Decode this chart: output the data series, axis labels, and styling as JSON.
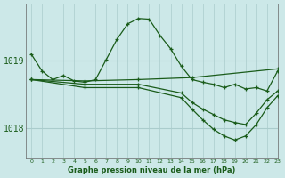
{
  "title": "Graphe pression niveau de la mer (hPa)",
  "bg_color": "#cce8e8",
  "grid_color": "#aacccc",
  "line_color": "#1a5c1a",
  "yticks": [
    1018,
    1019
  ],
  "ylim": [
    1017.55,
    1019.85
  ],
  "xlim": [
    -0.5,
    23
  ],
  "xticks": [
    0,
    1,
    2,
    3,
    4,
    5,
    6,
    7,
    8,
    9,
    10,
    11,
    12,
    13,
    14,
    15,
    16,
    17,
    18,
    19,
    20,
    21,
    22,
    23
  ],
  "series": [
    {
      "x": [
        0,
        1,
        2,
        3,
        4,
        5,
        6,
        7,
        8,
        9,
        10,
        11,
        12,
        13,
        14,
        15,
        16,
        17,
        18,
        19,
        20,
        21,
        22,
        23
      ],
      "y": [
        1019.1,
        1018.85,
        1018.72,
        1018.78,
        1018.7,
        1018.68,
        1018.72,
        1019.02,
        1019.32,
        1019.55,
        1019.63,
        1019.62,
        1019.38,
        1019.18,
        1018.92,
        1018.72,
        1018.68,
        1018.65,
        1018.6,
        1018.65,
        1018.58,
        1018.6,
        1018.55,
        1018.85
      ]
    },
    {
      "x": [
        0,
        5,
        10,
        15,
        23
      ],
      "y": [
        1018.72,
        1018.7,
        1018.72,
        1018.75,
        1018.88
      ]
    },
    {
      "x": [
        0,
        5,
        10,
        14,
        15,
        16,
        17,
        18,
        19,
        20,
        21,
        22,
        23
      ],
      "y": [
        1018.72,
        1018.65,
        1018.65,
        1018.52,
        1018.38,
        1018.28,
        1018.2,
        1018.12,
        1018.08,
        1018.05,
        1018.22,
        1018.42,
        1018.55
      ]
    },
    {
      "x": [
        0,
        5,
        10,
        14,
        15,
        16,
        17,
        18,
        19,
        20,
        21,
        22,
        23
      ],
      "y": [
        1018.72,
        1018.6,
        1018.6,
        1018.45,
        1018.28,
        1018.12,
        1017.98,
        1017.88,
        1017.82,
        1017.88,
        1018.05,
        1018.3,
        1018.48
      ]
    }
  ]
}
